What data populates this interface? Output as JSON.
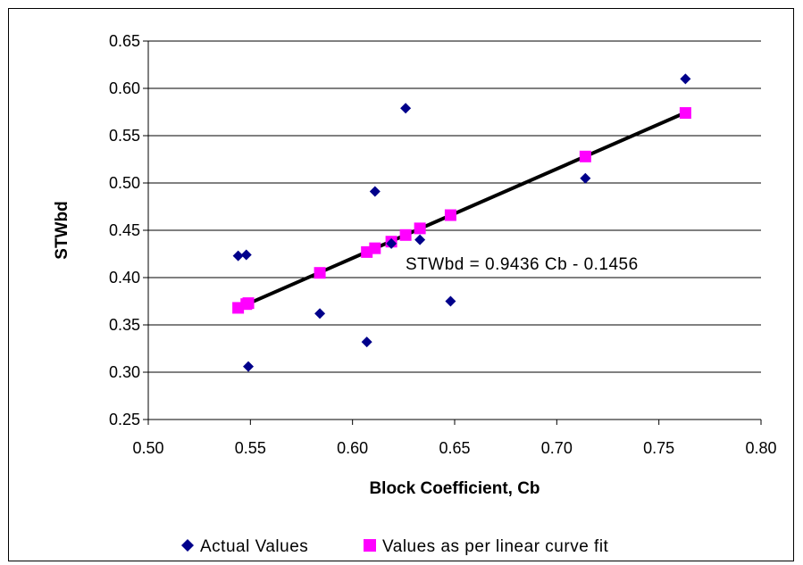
{
  "chart_data": {
    "type": "scatter",
    "xlabel": "Block Coefficient, Cb",
    "ylabel": "STWbd",
    "xlim": [
      0.5,
      0.8
    ],
    "ylim": [
      0.25,
      0.65
    ],
    "x_ticks": [
      "0.50",
      "0.55",
      "0.60",
      "0.65",
      "0.70",
      "0.75",
      "0.80"
    ],
    "y_ticks": [
      "0.25",
      "0.30",
      "0.35",
      "0.40",
      "0.45",
      "0.50",
      "0.55",
      "0.60",
      "0.65"
    ],
    "grid": "horizontal",
    "legend": "bottom",
    "series": [
      {
        "name": "Actual Values",
        "marker": "diamond",
        "color": "#00008B",
        "points": [
          {
            "x": 0.544,
            "y": 0.423
          },
          {
            "x": 0.548,
            "y": 0.424
          },
          {
            "x": 0.549,
            "y": 0.306
          },
          {
            "x": 0.584,
            "y": 0.362
          },
          {
            "x": 0.607,
            "y": 0.332
          },
          {
            "x": 0.611,
            "y": 0.491
          },
          {
            "x": 0.619,
            "y": 0.436
          },
          {
            "x": 0.626,
            "y": 0.579
          },
          {
            "x": 0.633,
            "y": 0.44
          },
          {
            "x": 0.648,
            "y": 0.375
          },
          {
            "x": 0.714,
            "y": 0.505
          },
          {
            "x": 0.763,
            "y": 0.61
          }
        ]
      },
      {
        "name": "Values as per linear curve fit",
        "marker": "square",
        "color": "#FF00FF",
        "points": [
          {
            "x": 0.544,
            "y": 0.368
          },
          {
            "x": 0.548,
            "y": 0.372
          },
          {
            "x": 0.549,
            "y": 0.373
          },
          {
            "x": 0.584,
            "y": 0.405
          },
          {
            "x": 0.607,
            "y": 0.427
          },
          {
            "x": 0.611,
            "y": 0.431
          },
          {
            "x": 0.619,
            "y": 0.438
          },
          {
            "x": 0.626,
            "y": 0.445
          },
          {
            "x": 0.633,
            "y": 0.452
          },
          {
            "x": 0.648,
            "y": 0.466
          },
          {
            "x": 0.714,
            "y": 0.528
          },
          {
            "x": 0.763,
            "y": 0.574
          }
        ]
      }
    ],
    "trendline": {
      "color": "#000000",
      "slope": 0.9436,
      "intercept": -0.1456,
      "x_range": [
        0.544,
        0.763
      ]
    },
    "annotation": "STWbd = 0.9436 Cb - 0.1456"
  }
}
